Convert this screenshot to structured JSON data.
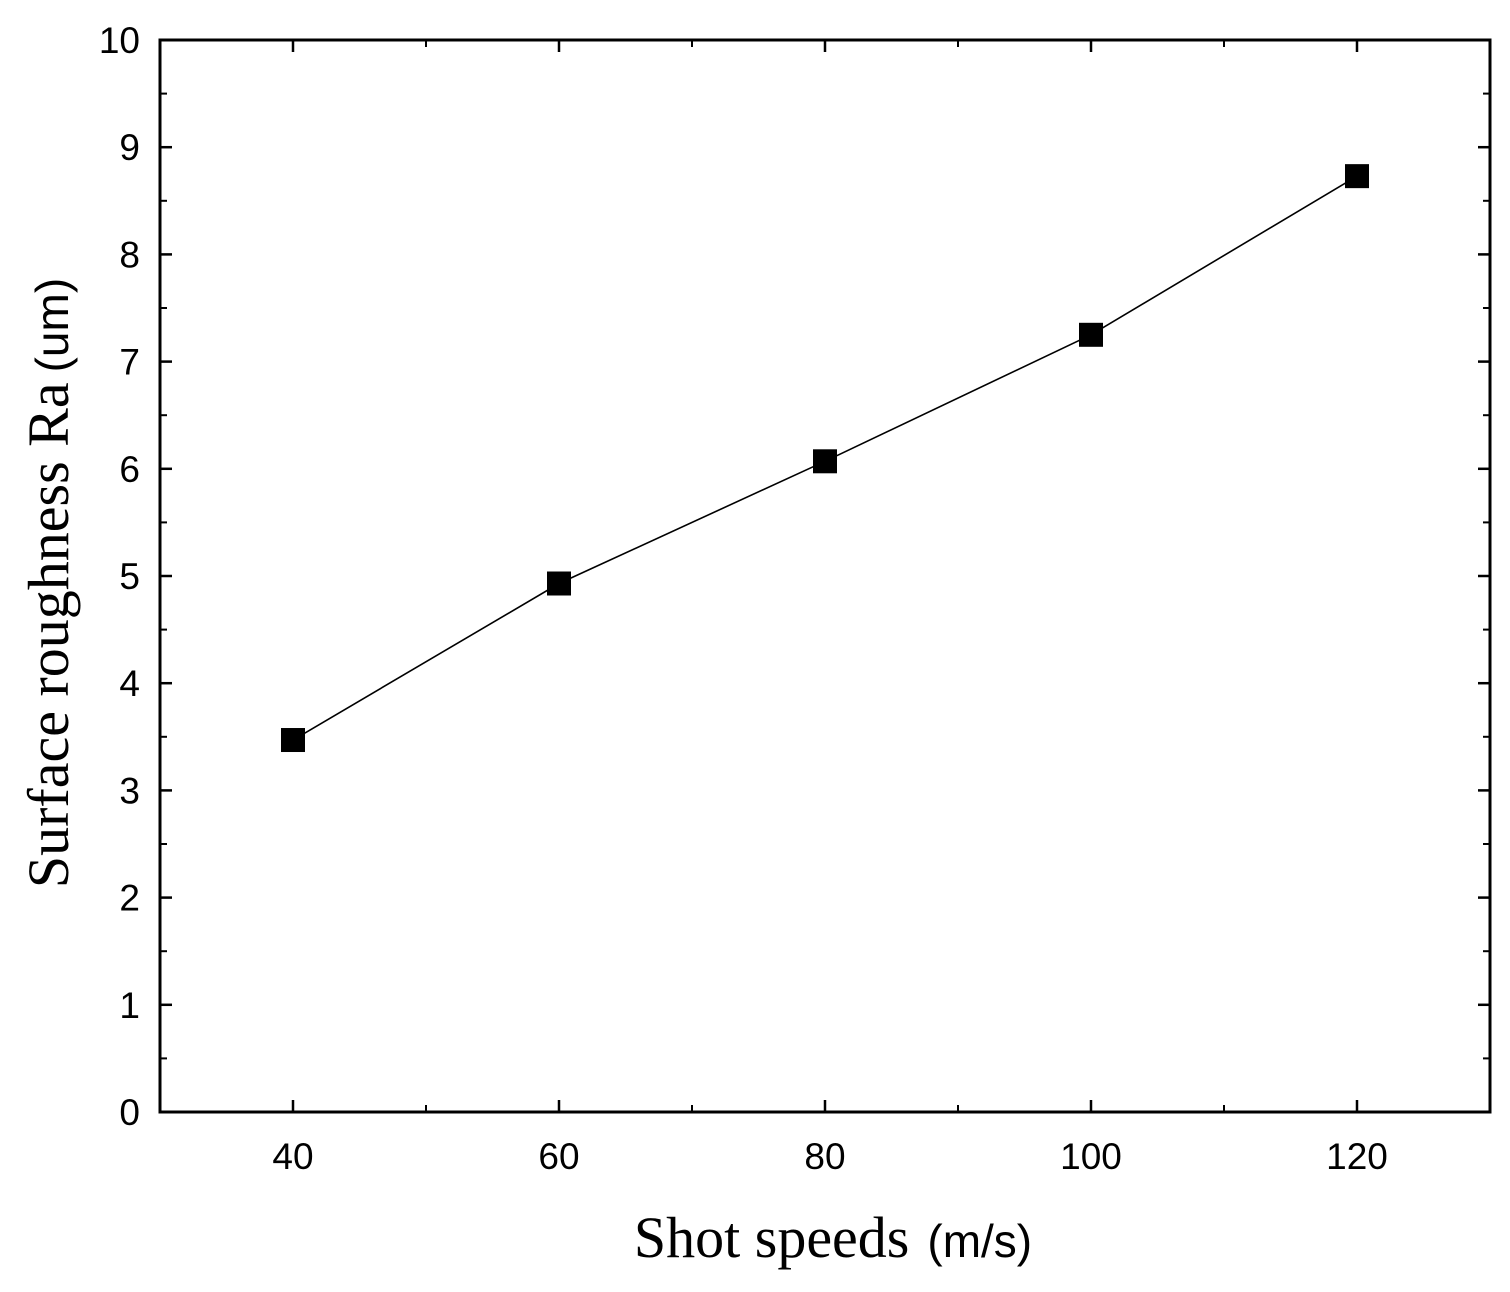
{
  "chart_data": {
    "type": "line",
    "title": "",
    "xlabel": {
      "main": "Shot speeds",
      "unit": "(m/s)"
    },
    "ylabel": {
      "main": "Surface roughness Ra",
      "unit": "(um)"
    },
    "xlim": [
      30,
      130
    ],
    "ylim": [
      0,
      10
    ],
    "x_ticks": [
      40,
      60,
      80,
      100,
      120
    ],
    "x_minor_ticks": [
      50,
      70,
      90,
      110
    ],
    "y_ticks": [
      0,
      1,
      2,
      3,
      4,
      5,
      6,
      7,
      8,
      9,
      10
    ],
    "y_minor_ticks": [
      0.5,
      1.5,
      2.5,
      3.5,
      4.5,
      5.5,
      6.5,
      7.5,
      8.5,
      9.5
    ],
    "grid": false,
    "legend": "none",
    "series": [
      {
        "name": "Surface roughness",
        "marker": "square",
        "color": "#000000",
        "x": [
          40,
          60,
          80,
          100,
          120
        ],
        "y": [
          3.47,
          4.93,
          6.07,
          7.25,
          8.73
        ]
      }
    ]
  }
}
